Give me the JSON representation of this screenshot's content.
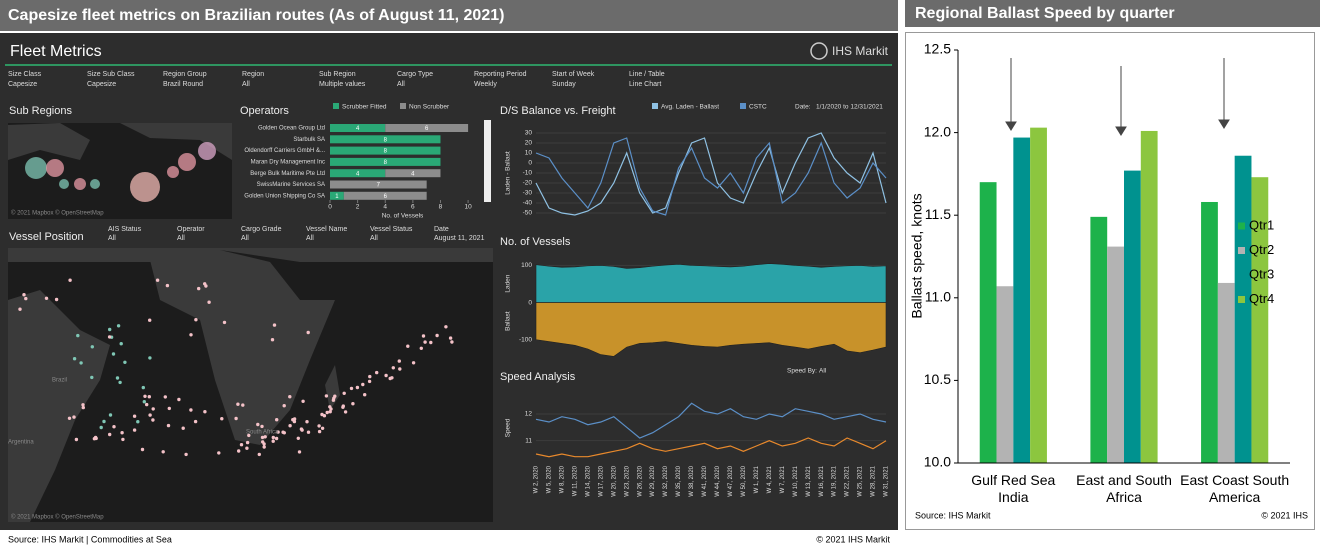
{
  "header": {
    "title": "Capesize fleet metrics on Brazilian routes (As of August 11, 2021)"
  },
  "dashboard": {
    "title": "Fleet Metrics",
    "logo": "IHS Markit",
    "filters": [
      {
        "label": "Size Class",
        "value": "Capesize"
      },
      {
        "label": "Size Sub Class",
        "value": "Capesize"
      },
      {
        "label": "Region Group",
        "value": "Brazil Round"
      },
      {
        "label": "Region",
        "value": "All"
      },
      {
        "label": "Sub Region",
        "value": "Multiple values"
      },
      {
        "label": "Cargo Type",
        "value": "All"
      },
      {
        "label": "Reporting Period",
        "value": "Weekly"
      },
      {
        "label": "Start of Week",
        "value": "Sunday"
      },
      {
        "label": "Line / Table",
        "value": "Line Chart"
      }
    ],
    "sub_regions_title": "Sub Regions",
    "map_credit": "© 2021 Mapbox © OpenStreetMap",
    "vessel_title": "Vessel Position",
    "vessel_filters": [
      {
        "label": "AIS Status",
        "value": "All"
      },
      {
        "label": "Operator",
        "value": "All"
      },
      {
        "label": "Cargo Grade",
        "value": "All"
      },
      {
        "label": "Vessel Name",
        "value": "All"
      },
      {
        "label": "Vessel Status",
        "value": "All"
      },
      {
        "label": "Date",
        "value": "August 11, 2021"
      }
    ],
    "map_labels": [
      "Brazil",
      "Argentina",
      "South Africa"
    ]
  },
  "chart_data": [
    {
      "type": "hbar_stacked",
      "title": "Operators",
      "categories": [
        "Golden Ocean Group Ltd",
        "Starbulk SA",
        "Oldendorff Carriers GmbH &...",
        "Maran Dry Management Inc",
        "Berge Bulk Maritime Pte Ltd",
        "SwissMarine Services SA",
        "Golden Union Shipping Co SA"
      ],
      "series": [
        {
          "name": "Scrubber Fitted",
          "color": "#2aa876",
          "values": [
            4,
            8,
            8,
            8,
            4,
            null,
            1
          ]
        },
        {
          "name": "Non Scrubber",
          "color": "#8c8c8c",
          "values": [
            6,
            null,
            null,
            null,
            4,
            7,
            6
          ]
        }
      ],
      "xlim": [
        0,
        10.5
      ],
      "xticks": [
        0,
        2,
        4,
        6,
        8,
        10
      ],
      "xlabel": "No. of Vessels"
    },
    {
      "type": "line",
      "title": "D/S Balance vs. Freight",
      "date_label": "Date:",
      "date_range": "1/1/2020 to 12/31/2021",
      "ylabel": "Laden - Ballast",
      "ylim": [
        -55,
        35
      ],
      "yticks": [
        30,
        20,
        10,
        0,
        -10,
        -20,
        -30,
        -40,
        -50
      ],
      "series": [
        {
          "name": "Avg. Laden - Ballast",
          "color": "#8fc1e3",
          "values": [
            -20,
            -45,
            -50,
            -52,
            -48,
            -40,
            -20,
            10,
            -30,
            -50,
            -45,
            -10,
            20,
            25,
            -20,
            -35,
            -40,
            -10,
            15,
            -30,
            0,
            25,
            30,
            5,
            -10,
            -20,
            10,
            -40
          ]
        },
        {
          "name": "CSTC",
          "color": "#5b8fc7",
          "values": [
            10,
            5,
            -15,
            -30,
            -45,
            -20,
            20,
            25,
            -25,
            -48,
            -52,
            -5,
            15,
            -15,
            -25,
            -10,
            -30,
            5,
            20,
            -40,
            -30,
            -10,
            20,
            -20,
            -35,
            -25,
            0,
            -15
          ]
        }
      ]
    },
    {
      "type": "area",
      "title": "No. of Vessels",
      "ylim": [
        -160,
        120
      ],
      "yticks": [
        100,
        0,
        -100
      ],
      "series": [
        {
          "name": "Laden",
          "color": "#2aa3a8",
          "values": [
            102,
            98,
            95,
            96,
            99,
            100,
            97,
            92,
            94,
            98,
            101,
            103,
            100,
            99,
            97,
            96,
            98,
            102,
            105,
            103,
            100,
            98,
            95,
            97,
            99,
            100,
            97,
            99
          ]
        },
        {
          "name": "Ballast",
          "color": "#c8922a",
          "values": [
            -100,
            -105,
            -110,
            -115,
            -125,
            -140,
            -145,
            -120,
            -110,
            -108,
            -105,
            -110,
            -115,
            -118,
            -120,
            -115,
            -112,
            -110,
            -108,
            -115,
            -120,
            -125,
            -118,
            -112,
            -130,
            -135,
            -128,
            -120
          ]
        }
      ]
    },
    {
      "type": "line",
      "title": "Speed Analysis",
      "speed_by_label": "Speed By:",
      "speed_by_value": "All",
      "ylabel": "Speed",
      "ylim": [
        10.2,
        12.6
      ],
      "yticks": [
        12,
        11
      ],
      "categories": [
        "W 2, 2020",
        "W 5, 2020",
        "W 8, 2020",
        "W 11, 2020",
        "W 14, 2020",
        "W 17, 2020",
        "W 20, 2020",
        "W 23, 2020",
        "W 26, 2020",
        "W 29, 2020",
        "W 32, 2020",
        "W 35, 2020",
        "W 38, 2020",
        "W 41, 2020",
        "W 44, 2020",
        "W 47, 2020",
        "W 50, 2020",
        "W 1, 2021",
        "W 4, 2021",
        "W 7, 2021",
        "W 10, 2021",
        "W 13, 2021",
        "W 16, 2021",
        "W 19, 2021",
        "W 22, 2021",
        "W 25, 2021",
        "W 28, 2021",
        "W 31, 2021"
      ],
      "series": [
        {
          "color": "#5b8fc7",
          "values": [
            11.8,
            11.7,
            11.9,
            11.8,
            11.6,
            11.7,
            11.9,
            11.5,
            11.1,
            11.3,
            11.6,
            11.9,
            12.4,
            12.1,
            12.0,
            12.2,
            11.9,
            11.8,
            12.0,
            11.9,
            12.2,
            12.1,
            12.0,
            11.8,
            11.9,
            12.0,
            11.8,
            11.7
          ]
        },
        {
          "color": "#e8892c",
          "values": [
            10.5,
            10.4,
            10.5,
            10.4,
            10.4,
            10.5,
            10.6,
            10.7,
            10.9,
            10.7,
            10.6,
            10.7,
            10.8,
            10.9,
            10.7,
            10.8,
            10.6,
            10.8,
            11.0,
            10.8,
            10.9,
            11.1,
            10.9,
            10.8,
            11.1,
            10.9,
            10.7,
            11.0
          ]
        }
      ]
    },
    {
      "type": "bar",
      "title": "Regional Ballast Speed by quarter",
      "ylabel": "Ballast speed, knots",
      "categories": [
        "Gulf Red Sea India",
        "East and South Africa",
        "East Coast South America"
      ],
      "series": [
        {
          "name": "Qtr1",
          "color": "#1db24b",
          "values": [
            11.7,
            11.49,
            11.58
          ]
        },
        {
          "name": "Qtr2",
          "color": "#b3b3b3",
          "values": [
            11.07,
            11.31,
            11.09
          ]
        },
        {
          "name": "Qtr3",
          "color": "#00928f",
          "values": [
            11.97,
            11.77,
            11.86
          ]
        },
        {
          "name": "Qtr4",
          "color": "#8cc63f",
          "values": [
            12.03,
            12.01,
            11.73
          ]
        }
      ],
      "ylim": [
        10,
        12.5
      ],
      "yticks": [
        {
          "value": 10,
          "label": "10.0"
        },
        10.5,
        {
          "value": 11,
          "label": "11.0"
        },
        11.5,
        {
          "value": 12,
          "label": "12.0"
        },
        12.5
      ],
      "source": "Source: IHS Markit",
      "copyright": "© 2021 IHS"
    }
  ],
  "footer": {
    "source": "Source: IHS Markit | Commodities at Sea",
    "copyright": "© 2021 IHS Markit"
  }
}
